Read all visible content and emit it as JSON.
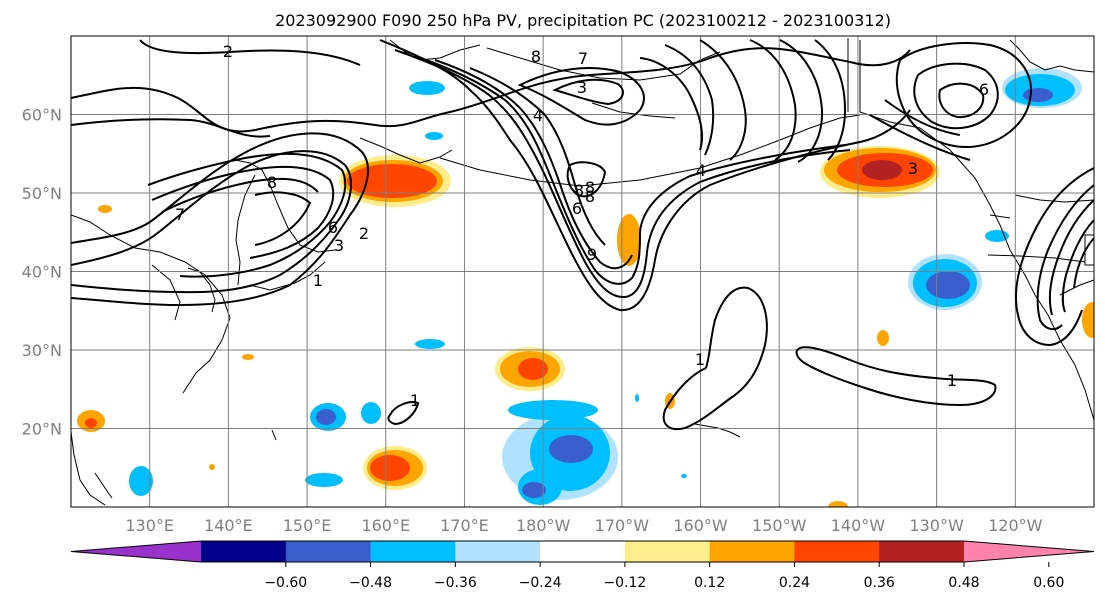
{
  "title": "2023092900 F090 250 hPa PV, precipitation PC (2023100212 - 2023100312)",
  "lat_labels": [
    "60°N",
    "50°N",
    "40°N",
    "30°N",
    "20°N"
  ],
  "lat_values": [
    60,
    50,
    40,
    30,
    20
  ],
  "lon_labels": [
    "130°E",
    "140°E",
    "150°E",
    "160°E",
    "170°E",
    "180°W",
    "170°W",
    "160°W",
    "150°W",
    "140°W",
    "130°W",
    "120°W"
  ],
  "lon_values": [
    130,
    140,
    150,
    160,
    170,
    180,
    190,
    200,
    210,
    220,
    230,
    240
  ],
  "map_extent": {
    "lon_min": 120,
    "lon_max": 250,
    "lat_min": 10,
    "lat_max": 70
  },
  "contour_labels": [
    "2",
    "8",
    "7",
    "3",
    "8",
    "4",
    "8",
    "7",
    "6",
    "3",
    "2",
    "1",
    "8",
    "8",
    "6",
    "9",
    "4",
    "3",
    "6",
    "1",
    "1",
    "1"
  ],
  "colorbar": {
    "colors": [
      "#9932cc",
      "#00008b",
      "#3a5fcd",
      "#00bfff",
      "#b0e2ff",
      "#ffffff",
      "#ffec8b",
      "#ffa500",
      "#ff4500",
      "#b22222",
      "#ff82ab"
    ],
    "tick_labels": [
      "−0.60",
      "−0.48",
      "−0.36",
      "−0.24",
      "−0.12",
      "0.12",
      "0.24",
      "0.36",
      "0.48",
      "0.60"
    ],
    "tick_values": [
      -0.6,
      -0.48,
      -0.36,
      -0.24,
      -0.12,
      0.12,
      0.24,
      0.36,
      0.48,
      0.6
    ]
  }
}
